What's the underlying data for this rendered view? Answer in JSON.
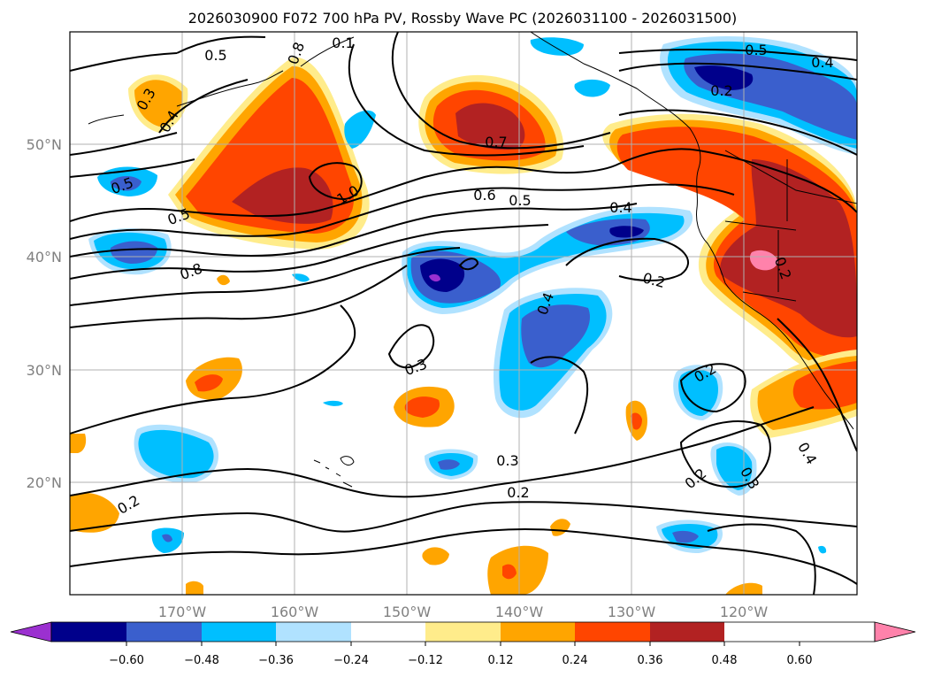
{
  "title": "2026030900 F072 700 hPa PV, Rossby Wave PC (2026031100 - 2026031500)",
  "map": {
    "lon_range": [
      -180,
      -110
    ],
    "lat_range": [
      10,
      60
    ],
    "lat_labels": [
      {
        "lat": 50,
        "text": "50°N"
      },
      {
        "lat": 40,
        "text": "40°N"
      },
      {
        "lat": 30,
        "text": "30°N"
      },
      {
        "lat": 20,
        "text": "20°N"
      }
    ],
    "lon_labels": [
      {
        "lon": -170,
        "text": "170°W"
      },
      {
        "lon": -160,
        "text": "160°W"
      },
      {
        "lon": -150,
        "text": "150°W"
      },
      {
        "lon": -140,
        "text": "140°W"
      },
      {
        "lon": -130,
        "text": "130°W"
      },
      {
        "lon": -120,
        "text": "120°W"
      }
    ],
    "contour_labels": [
      "0.5",
      "0.1",
      "0.3",
      "0.4",
      "0.8",
      "0.5",
      "1.0",
      "0.5",
      "0.8",
      "0.7",
      "0.6",
      "0.5",
      "0.4",
      "0.5",
      "0.4",
      "0.2",
      "0.2",
      "0.4",
      "0.3",
      "0.3",
      "0.2",
      "0.2",
      "0.2",
      "0.2",
      "0.4",
      "0.3",
      "0.2"
    ]
  },
  "colorbar": {
    "colors": [
      "#9b30d0",
      "#00008b",
      "#3a5fcd",
      "#00bfff",
      "#b0e2ff",
      "#ffffff",
      "#ffec8b",
      "#ffa500",
      "#ff4500",
      "#b22222",
      "#ff82ab"
    ],
    "tick_labels": [
      "−0.60",
      "−0.48",
      "−0.36",
      "−0.24",
      "−0.12",
      "0.12",
      "0.24",
      "0.36",
      "0.48",
      "0.60"
    ]
  }
}
